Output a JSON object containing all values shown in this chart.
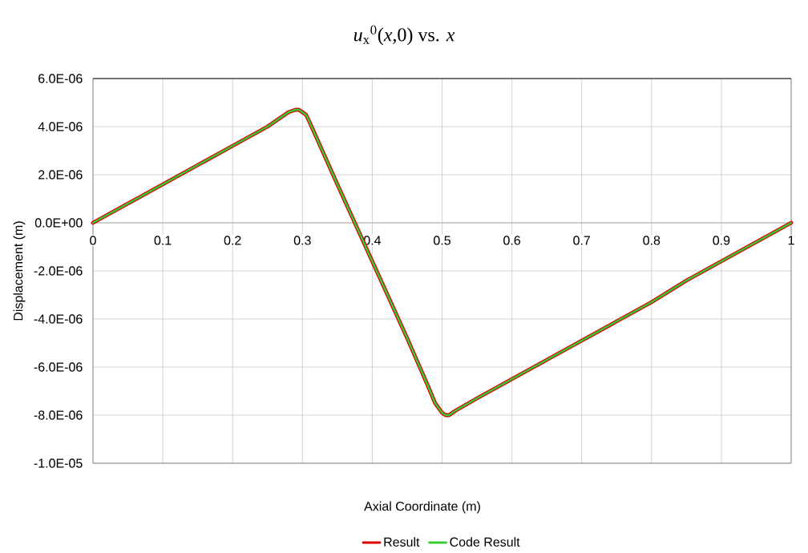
{
  "chart_data": {
    "type": "line",
    "title": "*u*$_{x}$$^{0}$(*x*,0) vs. *x*",
    "xlabel": "Axial Coordinate (m)",
    "ylabel": "Displacement (m)",
    "x": [
      0,
      0.05,
      0.1,
      0.15,
      0.2,
      0.25,
      0.27,
      0.28,
      0.29,
      0.295,
      0.3,
      0.305,
      0.31,
      0.35,
      0.4,
      0.45,
      0.48,
      0.49,
      0.5,
      0.505,
      0.51,
      0.52,
      0.55,
      0.6,
      0.65,
      0.7,
      0.75,
      0.8,
      0.85,
      0.9,
      0.95,
      1
    ],
    "series": [
      {
        "name": "Result",
        "color": "#dd0000",
        "values": [
          0,
          8e-07,
          1.6e-06,
          2.4e-06,
          3.2e-06,
          4e-06,
          4.4e-06,
          4.6e-06,
          4.7e-06,
          4.7e-06,
          4.6e-06,
          4.5e-06,
          4.2e-06,
          1.6e-06,
          -1.6e-06,
          -4.8e-06,
          -6.8e-06,
          -7.5e-06,
          -7.9e-06,
          -8e-06,
          -8e-06,
          -7.8e-06,
          -7.3e-06,
          -6.5e-06,
          -5.7e-06,
          -4.9e-06,
          -4.1e-06,
          -3.3e-06,
          -2.4e-06,
          -1.6e-06,
          -8e-07,
          0
        ]
      },
      {
        "name": "Code Result",
        "color": "#33cc33",
        "values": [
          0,
          8e-07,
          1.6e-06,
          2.4e-06,
          3.2e-06,
          4e-06,
          4.4e-06,
          4.6e-06,
          4.7e-06,
          4.7e-06,
          4.6e-06,
          4.5e-06,
          4.2e-06,
          1.6e-06,
          -1.6e-06,
          -4.8e-06,
          -6.8e-06,
          -7.5e-06,
          -7.9e-06,
          -8e-06,
          -8e-06,
          -7.8e-06,
          -7.3e-06,
          -6.5e-06,
          -5.7e-06,
          -4.9e-06,
          -4.1e-06,
          -3.3e-06,
          -2.4e-06,
          -1.6e-06,
          -8e-07,
          0
        ]
      }
    ],
    "xlim": [
      0,
      1
    ],
    "ylim": [
      -1e-05,
      6e-06
    ],
    "xticks": [
      0,
      0.1,
      0.2,
      0.3,
      0.4,
      0.5,
      0.6,
      0.7,
      0.8,
      0.9,
      1
    ],
    "yticks": [
      {
        "value": -1e-05,
        "label": "-1.0E-05"
      },
      {
        "value": -8e-06,
        "label": "-8.0E-06"
      },
      {
        "value": -6e-06,
        "label": "-6.0E-06"
      },
      {
        "value": -4e-06,
        "label": "-4.0E-06"
      },
      {
        "value": -2e-06,
        "label": "-2.0E-06"
      },
      {
        "value": 0,
        "label": "0.0E+00"
      },
      {
        "value": 2e-06,
        "label": "2.0E-06"
      },
      {
        "value": 4e-06,
        "label": "4.0E-06"
      },
      {
        "value": 6e-06,
        "label": "6.0E-06"
      }
    ],
    "grid": true,
    "legend": "bottom"
  }
}
